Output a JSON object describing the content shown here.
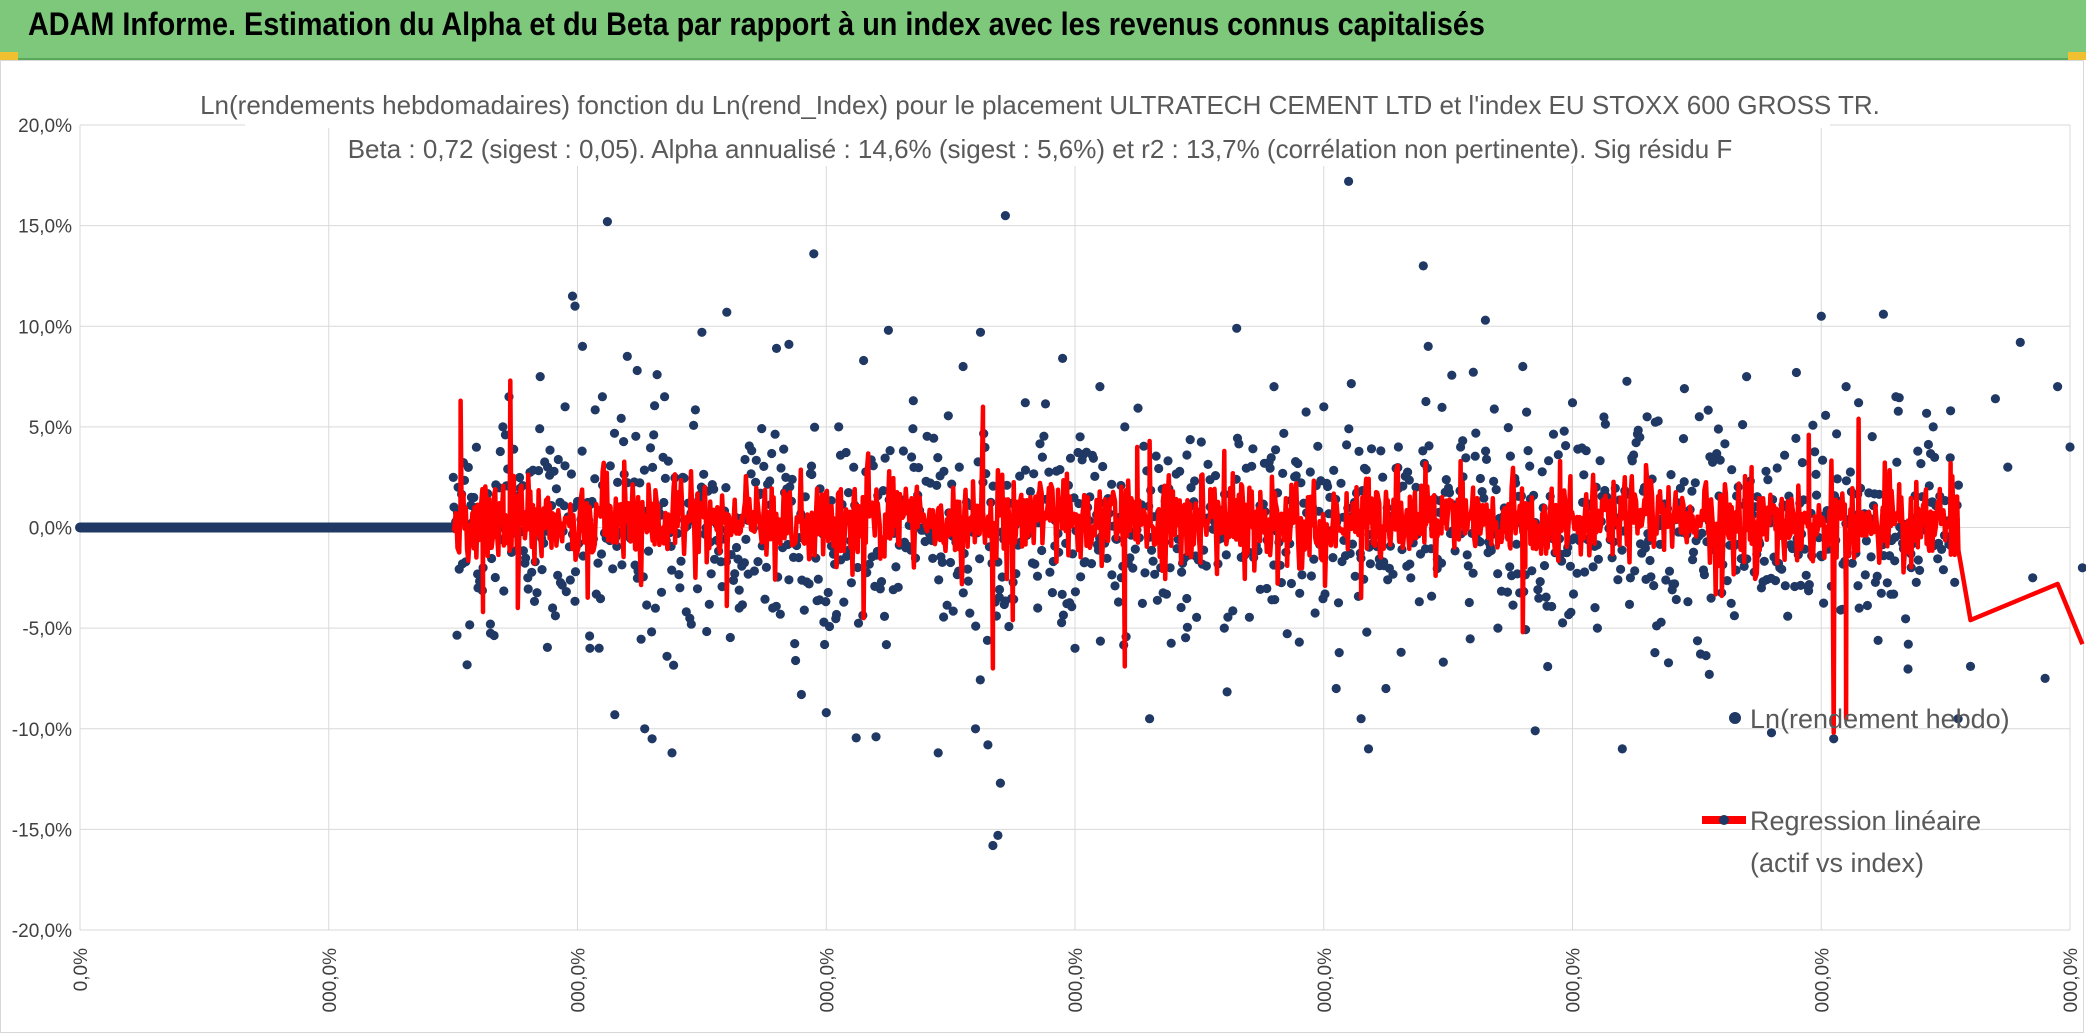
{
  "header": {
    "title": "ADAM Informe. Estimation du Alpha et du Beta par rapport à un index avec les revenus connus capitalisés"
  },
  "colors": {
    "banner": "#7dc87b",
    "scatter": "#203864",
    "regression": "#ff0000",
    "grid": "#d9d9d9"
  },
  "chart_data": {
    "type": "scatter",
    "title": "Ln(rendements hebdomadaires) fonction du Ln(rend_Index) pour le placement ULTRATECH CEMENT LTD et l'index EU STOXX 600 GROSS TR.",
    "subtitle": "Beta : 0,72 (sigest : 0,05). Alpha annualisé : 14,6% (sigest : 5,6%) et r2 : 13,7% (corrélation non pertinente). Sig résidu F",
    "ylim": [
      -20,
      20
    ],
    "y_ticks": [
      {
        "value": 20,
        "label": "20,0%"
      },
      {
        "value": 15,
        "label": "15,0%"
      },
      {
        "value": 10,
        "label": "10,0%"
      },
      {
        "value": 5,
        "label": "5,0%"
      },
      {
        "value": 0,
        "label": "0,0%"
      },
      {
        "value": -5,
        "label": "-5,0%"
      },
      {
        "value": -10,
        "label": "-10,0%"
      },
      {
        "value": -15,
        "label": "-15,0%"
      },
      {
        "value": -20,
        "label": "-20,0%"
      }
    ],
    "x_ticks": [
      "0,0%",
      "000,0%",
      "000,0%",
      "000,0%",
      "000,0%",
      "000,0%",
      "000,0%",
      "000,0%",
      "000,0%"
    ],
    "xlim": [
      0,
      8
    ],
    "legend_position": "right",
    "series": [
      {
        "name": "Ln(rendement hebdo)",
        "kind": "scatter",
        "zero_run": {
          "x_start": 0.0,
          "x_end": 1.5,
          "y": 0
        },
        "data_start_x": 1.5,
        "data_end_x": 7.55,
        "highlight_points": [
          [
            1.52,
            2.0
          ],
          [
            1.6,
            -3.0
          ],
          [
            1.65,
            -4.8
          ],
          [
            1.7,
            5.0
          ],
          [
            1.75,
            1.5
          ],
          [
            1.8,
            -2.5
          ],
          [
            1.85,
            7.5
          ],
          [
            1.88,
            3.0
          ],
          [
            1.9,
            -4.0
          ],
          [
            1.95,
            6.0
          ],
          [
            1.98,
            11.5
          ],
          [
            1.99,
            11.0
          ],
          [
            2.02,
            9.0
          ],
          [
            2.05,
            -6.0
          ],
          [
            2.1,
            6.5
          ],
          [
            2.12,
            15.2
          ],
          [
            2.15,
            -9.3
          ],
          [
            2.2,
            8.5
          ],
          [
            2.24,
            7.8
          ],
          [
            2.27,
            -10.0
          ],
          [
            2.3,
            -10.5
          ],
          [
            2.32,
            7.6
          ],
          [
            2.35,
            6.5
          ],
          [
            2.38,
            -11.2
          ],
          [
            2.36,
            -6.4
          ],
          [
            2.5,
            9.7
          ],
          [
            2.6,
            10.7
          ],
          [
            2.65,
            -4.0
          ],
          [
            2.8,
            8.9
          ],
          [
            2.85,
            9.1
          ],
          [
            2.9,
            -8.3
          ],
          [
            2.95,
            13.6
          ],
          [
            3.0,
            -9.2
          ],
          [
            3.05,
            5.0
          ],
          [
            3.15,
            8.3
          ],
          [
            3.2,
            -10.4
          ],
          [
            3.25,
            9.8
          ],
          [
            3.35,
            6.3
          ],
          [
            3.45,
            -11.2
          ],
          [
            3.55,
            8.0
          ],
          [
            3.6,
            -10.0
          ],
          [
            3.62,
            9.7
          ],
          [
            3.65,
            -10.8
          ],
          [
            3.67,
            -15.8
          ],
          [
            3.69,
            -15.3
          ],
          [
            3.7,
            -12.7
          ],
          [
            3.72,
            15.5
          ],
          [
            3.8,
            6.2
          ],
          [
            3.85,
            -4.0
          ],
          [
            3.95,
            8.4
          ],
          [
            4.0,
            -6.0
          ],
          [
            4.1,
            7.0
          ],
          [
            4.2,
            5.0
          ],
          [
            4.3,
            -9.5
          ],
          [
            4.45,
            3.6
          ],
          [
            4.6,
            -5.0
          ],
          [
            4.65,
            9.9
          ],
          [
            4.8,
            7.0
          ],
          [
            5.0,
            6.0
          ],
          [
            5.05,
            -8.0
          ],
          [
            5.1,
            17.2
          ],
          [
            5.15,
            -9.5
          ],
          [
            5.18,
            -11.0
          ],
          [
            5.25,
            -8.0
          ],
          [
            5.3,
            4.0
          ],
          [
            5.4,
            13.0
          ],
          [
            5.42,
            9.0
          ],
          [
            5.55,
            4.0
          ],
          [
            5.65,
            10.3
          ],
          [
            5.7,
            -5.0
          ],
          [
            5.8,
            8.0
          ],
          [
            5.85,
            -10.1
          ],
          [
            6.0,
            6.2
          ],
          [
            6.1,
            -5.0
          ],
          [
            6.2,
            -11.0
          ],
          [
            6.3,
            5.5
          ],
          [
            6.45,
            6.9
          ],
          [
            6.55,
            -7.3
          ],
          [
            6.7,
            7.5
          ],
          [
            6.8,
            -10.2
          ],
          [
            6.9,
            7.7
          ],
          [
            7.0,
            10.5
          ],
          [
            7.05,
            -10.5
          ],
          [
            7.1,
            7.0
          ],
          [
            7.15,
            6.2
          ],
          [
            7.25,
            10.6
          ],
          [
            7.3,
            6.5
          ],
          [
            7.35,
            -5.8
          ],
          [
            7.45,
            5.0
          ],
          [
            7.55,
            -9.5
          ],
          [
            7.52,
            5.8
          ],
          [
            7.6,
            -6.9
          ],
          [
            7.7,
            6.4
          ],
          [
            7.8,
            9.2
          ],
          [
            7.9,
            -7.5
          ],
          [
            7.95,
            7.0
          ],
          [
            8.0,
            4.0
          ],
          [
            8.05,
            -2.0
          ],
          [
            7.85,
            -2.5
          ],
          [
            7.75,
            3.0
          ]
        ]
      },
      {
        "name": "Regression linéaire (actif vs index)",
        "kind": "line",
        "data_start_x": 1.5,
        "data_end_x": 7.55,
        "alpha_weekly": 0.27,
        "beta": 0.72,
        "spikes": [
          [
            1.53,
            6.3
          ],
          [
            1.62,
            -4.2
          ],
          [
            1.73,
            7.3
          ],
          [
            1.76,
            -4.0
          ],
          [
            2.6,
            -3.9
          ],
          [
            3.15,
            -4.5
          ],
          [
            3.63,
            6.0
          ],
          [
            3.67,
            -7.0
          ],
          [
            3.75,
            -4.6
          ],
          [
            4.2,
            -6.9
          ],
          [
            4.25,
            4.0
          ],
          [
            4.3,
            4.3
          ],
          [
            4.6,
            3.8
          ],
          [
            5.15,
            -3.5
          ],
          [
            5.55,
            3.3
          ],
          [
            5.8,
            -5.2
          ],
          [
            5.95,
            3.3
          ],
          [
            6.6,
            -3.4
          ],
          [
            6.72,
            3.0
          ],
          [
            6.95,
            4.6
          ],
          [
            7.05,
            -10.2
          ],
          [
            7.1,
            -9.5
          ],
          [
            7.15,
            5.4
          ],
          [
            7.52,
            3.2
          ],
          [
            7.6,
            -4.6
          ],
          [
            7.95,
            -2.8
          ],
          [
            8.05,
            -5.8
          ]
        ]
      }
    ]
  }
}
